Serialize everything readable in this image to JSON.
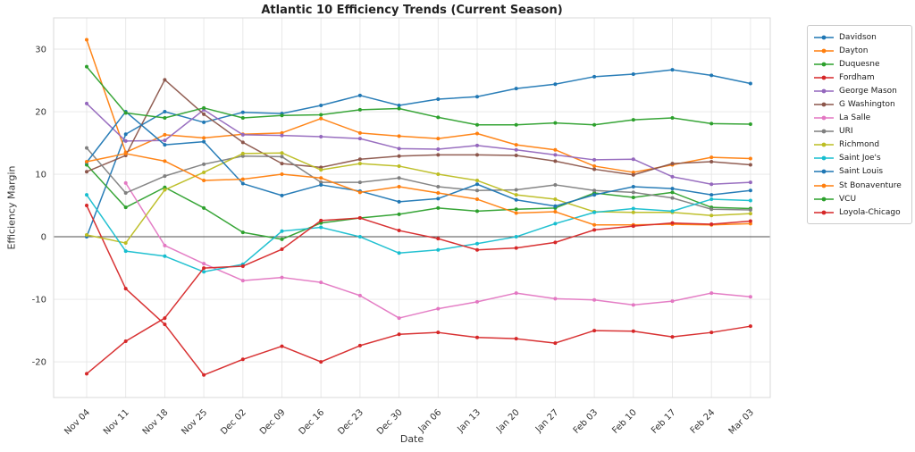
{
  "chart": {
    "title": "Atlantic 10 Efficiency Trends (Current Season)",
    "xlabel": "Date",
    "ylabel": "Efficiency Margin"
  },
  "chart_data": {
    "type": "line",
    "title": "Atlantic 10 Efficiency Trends (Current Season)",
    "xlabel": "Date",
    "ylabel": "Efficiency Margin",
    "x": [
      "Nov 04",
      "Nov 11",
      "Nov 18",
      "Nov 25",
      "Dec 02",
      "Dec 09",
      "Dec 16",
      "Dec 23",
      "Dec 30",
      "Jan 06",
      "Jan 13",
      "Jan 20",
      "Jan 27",
      "Feb 03",
      "Feb 10",
      "Feb 17",
      "Feb 24",
      "Mar 03"
    ],
    "yticks": [
      -20,
      -10,
      0,
      10,
      20,
      30
    ],
    "ylim": [
      -25.7,
      35.0
    ],
    "grid": true,
    "zero_line": 0,
    "legend_position": "right-outside",
    "colors": {
      "grid": "#e6e6e6",
      "spine": "#d9d9d9",
      "zero_line": "#4d4d4d",
      "tick_label": "#333333"
    },
    "series": [
      {
        "name": "Davidson",
        "color": "#1f77b4",
        "values": [
          0.0,
          16.4,
          20.0,
          18.3,
          19.9,
          19.7,
          21.0,
          22.6,
          21.0,
          22.0,
          22.4,
          23.7,
          24.4,
          25.6,
          26.0,
          26.7,
          25.8,
          24.5
        ]
      },
      {
        "name": "Dayton",
        "color": "#ff7f0e",
        "values": [
          31.5,
          13.5,
          16.3,
          15.8,
          16.4,
          16.6,
          18.9,
          16.6,
          16.1,
          15.7,
          16.5,
          14.7,
          13.9,
          11.3,
          10.3,
          11.5,
          12.7,
          12.5
        ]
      },
      {
        "name": "Duquesne",
        "color": "#2ca02c",
        "values": [
          11.5,
          4.7,
          7.9,
          4.6,
          0.7,
          -0.4,
          2.2,
          3.0,
          3.6,
          4.6,
          4.1,
          4.4,
          4.6,
          7.0,
          6.3,
          7.1,
          4.7,
          4.5
        ]
      },
      {
        "name": "Fordham",
        "color": "#d62728",
        "values": [
          5.0,
          -8.3,
          -14.0,
          -22.1,
          -19.6,
          -17.5,
          -20.0,
          -17.4,
          -15.6,
          -15.3,
          -16.1,
          -16.3,
          -17.0,
          -15.0,
          -15.1,
          -16.0,
          -15.3,
          -14.3
        ]
      },
      {
        "name": "George Mason",
        "color": "#9467bd",
        "values": [
          21.3,
          15.3,
          15.4,
          20.3,
          16.3,
          16.2,
          16.0,
          15.7,
          14.1,
          14.0,
          14.6,
          13.9,
          13.1,
          12.3,
          12.4,
          9.6,
          8.4,
          8.7
        ]
      },
      {
        "name": "G Washington",
        "color": "#8c564b",
        "values": [
          10.4,
          13.0,
          25.1,
          19.6,
          15.1,
          11.7,
          11.1,
          12.4,
          12.9,
          13.1,
          13.1,
          13.0,
          12.1,
          10.8,
          9.9,
          11.7,
          12.0,
          11.5
        ]
      },
      {
        "name": "La Salle",
        "color": "#e377c2",
        "values": [
          null,
          8.6,
          -1.4,
          -4.3,
          -7.0,
          -6.5,
          -7.3,
          -9.4,
          -13.0,
          -11.5,
          -10.4,
          -9.0,
          -9.9,
          -10.1,
          -10.9,
          -10.3,
          -9.0,
          -9.6
        ]
      },
      {
        "name": "URI",
        "color": "#7f7f7f",
        "values": [
          14.2,
          7.0,
          9.7,
          11.6,
          12.9,
          12.8,
          8.7,
          8.7,
          9.4,
          8.0,
          7.4,
          7.5,
          8.3,
          7.4,
          7.1,
          6.2,
          4.4,
          4.3
        ]
      },
      {
        "name": "Richmond",
        "color": "#bcbd22",
        "values": [
          0.3,
          -1.0,
          7.5,
          10.3,
          13.3,
          13.4,
          10.7,
          11.7,
          11.3,
          10.0,
          9.0,
          6.7,
          6.0,
          4.0,
          3.9,
          3.9,
          3.4,
          3.7
        ]
      },
      {
        "name": "Saint Joe's",
        "color": "#17becf",
        "values": [
          6.7,
          -2.3,
          -3.1,
          -5.6,
          -4.4,
          0.9,
          1.5,
          0.0,
          -2.6,
          -2.1,
          -1.1,
          0.0,
          2.1,
          3.9,
          4.5,
          4.1,
          6.0,
          5.8
        ]
      },
      {
        "name": "Saint Louis",
        "color": "#1f77b4",
        "values": [
          11.9,
          20.0,
          14.7,
          15.2,
          8.5,
          6.6,
          8.3,
          7.3,
          5.6,
          6.1,
          8.4,
          5.9,
          4.9,
          6.7,
          8.0,
          7.7,
          6.7,
          7.4
        ]
      },
      {
        "name": "St Bonaventure",
        "color": "#ff7f0e",
        "values": [
          12.0,
          13.3,
          12.1,
          9.0,
          9.2,
          10.0,
          9.4,
          7.1,
          8.0,
          7.0,
          6.0,
          3.8,
          4.0,
          1.9,
          1.9,
          2.0,
          1.9,
          2.1
        ]
      },
      {
        "name": "VCU",
        "color": "#2ca02c",
        "values": [
          27.2,
          19.8,
          19.0,
          20.6,
          19.0,
          19.4,
          19.5,
          20.3,
          20.5,
          19.1,
          17.9,
          17.9,
          18.2,
          17.9,
          18.7,
          19.0,
          18.1,
          18.0
        ]
      },
      {
        "name": "Loyola-Chicago",
        "color": "#d62728",
        "values": [
          -21.9,
          -16.7,
          -13.0,
          -5.0,
          -4.7,
          -2.0,
          2.6,
          3.0,
          1.0,
          -0.3,
          -2.1,
          -1.8,
          -0.9,
          1.1,
          1.7,
          2.2,
          2.0,
          2.5
        ]
      }
    ]
  }
}
